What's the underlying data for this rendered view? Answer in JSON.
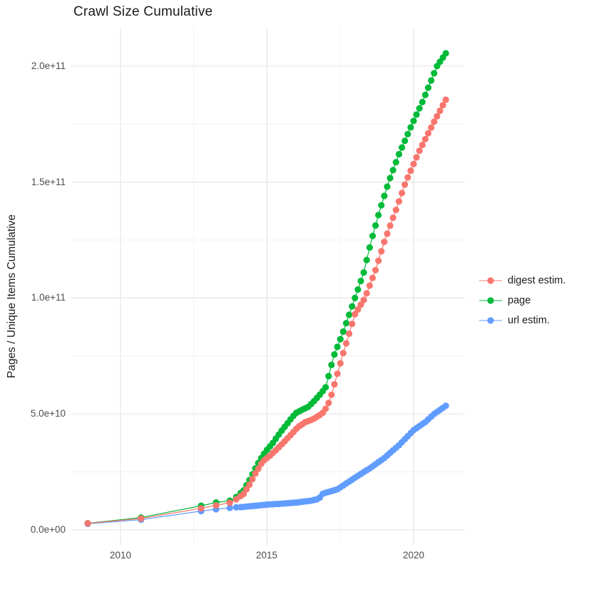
{
  "header": {
    "title": "Crawl Size Cumulative"
  },
  "chart_data": {
    "type": "scatter",
    "title": "Crawl Size Cumulative",
    "xlabel": "",
    "ylabel": "Pages / Unique Items Cumulative",
    "value_scale": 1000000000,
    "xlim": [
      2008.32,
      2021.75
    ],
    "ylim_e9": [
      -6.5,
      216
    ],
    "grid": "major+minor",
    "legend_position": "right",
    "xticks": [
      {
        "v": 2010,
        "label": "2010"
      },
      {
        "v": 2015,
        "label": "2015"
      },
      {
        "v": 2020,
        "label": "2020"
      }
    ],
    "x_minor": [
      2012.5,
      2017.5
    ],
    "yticks": [
      {
        "v_e9": 0,
        "label": "0.0e+00"
      },
      {
        "v_e9": 50,
        "label": "5.0e+10"
      },
      {
        "v_e9": 100,
        "label": "1.0e+11"
      },
      {
        "v_e9": 150,
        "label": "1.5e+11"
      },
      {
        "v_e9": 200,
        "label": "2.0e+11"
      }
    ],
    "y_minor_e9": [
      25,
      75,
      125,
      175
    ],
    "sampling": {
      "dense_from": 2014.1,
      "dense_to": 2021.1,
      "step": 0.1
    },
    "series": [
      {
        "name": "digest estim.",
        "color": "#F8766D",
        "points_e9": [
          [
            2008.88,
            2.8
          ],
          [
            2010.7,
            4.9
          ],
          [
            2012.75,
            9.3
          ],
          [
            2013.26,
            10.6
          ],
          [
            2013.73,
            11.7
          ],
          [
            2013.95,
            13.2
          ],
          [
            2014.2,
            15.5
          ],
          [
            2014.4,
            19.5
          ],
          [
            2014.6,
            24.3
          ],
          [
            2014.85,
            29.5
          ],
          [
            2015.1,
            32
          ],
          [
            2015.35,
            35
          ],
          [
            2015.6,
            38.2
          ],
          [
            2015.85,
            41.5
          ],
          [
            2016.05,
            44.3
          ],
          [
            2016.3,
            46.4
          ],
          [
            2016.55,
            47.6
          ],
          [
            2016.8,
            49.5
          ],
          [
            2016.95,
            51
          ],
          [
            2017.15,
            56
          ],
          [
            2017.57,
            75
          ],
          [
            2018.0,
            93
          ],
          [
            2018.34,
            100
          ],
          [
            2018.7,
            112
          ],
          [
            2019.02,
            125
          ],
          [
            2019.4,
            138
          ],
          [
            2019.73,
            150
          ],
          [
            2020.2,
            163.5
          ],
          [
            2020.7,
            176
          ],
          [
            2021.1,
            185.5
          ]
        ]
      },
      {
        "name": "page",
        "color": "#00BA38",
        "points_e9": [
          [
            2008.88,
            2.9
          ],
          [
            2010.7,
            5.3
          ],
          [
            2012.75,
            10.4
          ],
          [
            2013.26,
            11.8
          ],
          [
            2013.73,
            12.6
          ],
          [
            2013.95,
            14.2
          ],
          [
            2014.2,
            17
          ],
          [
            2014.4,
            21.5
          ],
          [
            2014.6,
            26.5
          ],
          [
            2014.75,
            30
          ],
          [
            2014.95,
            33.8
          ],
          [
            2015.2,
            37.5
          ],
          [
            2015.45,
            42
          ],
          [
            2015.7,
            46
          ],
          [
            2015.85,
            48.5
          ],
          [
            2016.0,
            50.5
          ],
          [
            2016.2,
            51.8
          ],
          [
            2016.4,
            53
          ],
          [
            2016.6,
            55.5
          ],
          [
            2016.85,
            59
          ],
          [
            2017.0,
            61.5
          ],
          [
            2017.28,
            75
          ],
          [
            2017.6,
            85.5
          ],
          [
            2018.0,
            100
          ],
          [
            2018.3,
            111
          ],
          [
            2018.56,
            125
          ],
          [
            2018.85,
            138
          ],
          [
            2019.15,
            150
          ],
          [
            2019.5,
            162
          ],
          [
            2019.95,
            175
          ],
          [
            2020.3,
            184.5
          ],
          [
            2020.8,
            200
          ],
          [
            2021.1,
            205.5
          ]
        ]
      },
      {
        "name": "url estim.",
        "color": "#619CFF",
        "points_e9": [
          [
            2008.88,
            2.6
          ],
          [
            2010.7,
            4.4
          ],
          [
            2012.75,
            8.1
          ],
          [
            2013.26,
            8.9
          ],
          [
            2013.73,
            9.5
          ],
          [
            2013.95,
            9.7
          ],
          [
            2014.2,
            9.9
          ],
          [
            2014.5,
            10.3
          ],
          [
            2015.0,
            10.9
          ],
          [
            2015.5,
            11.3
          ],
          [
            2016.0,
            11.8
          ],
          [
            2016.5,
            12.6
          ],
          [
            2016.78,
            13.4
          ],
          [
            2016.85,
            15.3
          ],
          [
            2017.0,
            16.0
          ],
          [
            2017.4,
            17.5
          ],
          [
            2018.0,
            22.5
          ],
          [
            2018.5,
            26.5
          ],
          [
            2019.0,
            31
          ],
          [
            2019.5,
            36.5
          ],
          [
            2020.0,
            43
          ],
          [
            2020.4,
            46.5
          ],
          [
            2020.7,
            50
          ],
          [
            2021.1,
            53.5
          ]
        ]
      }
    ],
    "style": {
      "grid_major_color": "#e5e5e5",
      "grid_minor_color": "#f1f1f1",
      "point_radius": 4.6,
      "background": "#ffffff"
    }
  },
  "legend": {
    "items": [
      {
        "label": "digest estim."
      },
      {
        "label": "page"
      },
      {
        "label": "url estim."
      }
    ]
  }
}
